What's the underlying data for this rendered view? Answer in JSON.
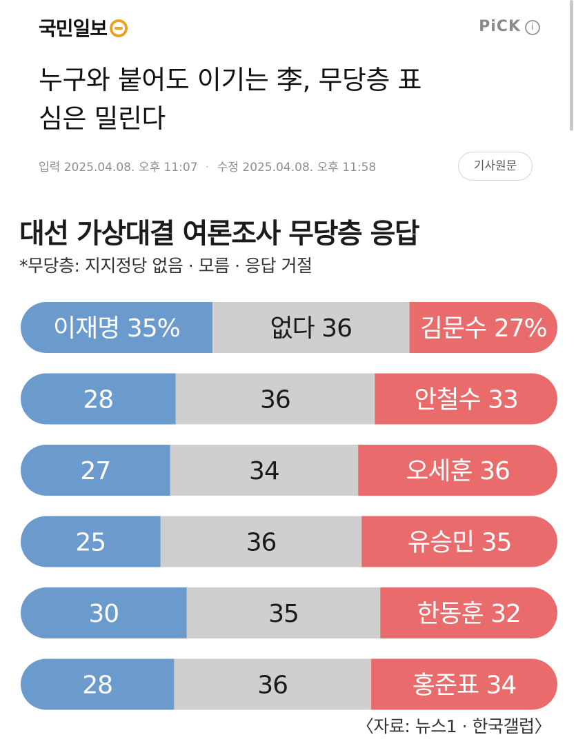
{
  "header": {
    "logo_text": "국민일보",
    "pick_label": "PiCK",
    "info_glyph": "i"
  },
  "article": {
    "headline_line1": "누구와 붙어도 이기는 李, 무당층 표",
    "headline_line2": "심은 밀린다",
    "input_label": "입력",
    "input_time": "2025.04.08. 오후 11:07",
    "edit_label": "수정",
    "edit_time": "2025.04.08. 오후 11:58",
    "original_button": "기사원문"
  },
  "chart_title": "대선 가상대결 여론조사 무당층 응답",
  "chart_note": "*무당층: 지지정당 없음 · 모름 · 응답 거절",
  "source": "〈자료: 뉴스1 · 한국갤럽〉",
  "colors": {
    "lee": "#6b9bcd",
    "none": "#cfcfcf",
    "opponent": "#ea6b6c"
  },
  "chart_data": {
    "type": "bar",
    "stacked": true,
    "orientation": "horizontal",
    "rows": [
      {
        "left_label": "이재명 35%",
        "middle_label": "없다 36",
        "right_label": "김문수 27%",
        "values": [
          35,
          36,
          27
        ]
      },
      {
        "left_label": "28",
        "middle_label": "36",
        "right_label": "안철수 33",
        "values": [
          28,
          36,
          33
        ]
      },
      {
        "left_label": "27",
        "middle_label": "34",
        "right_label": "오세훈 36",
        "values": [
          27,
          34,
          36
        ]
      },
      {
        "left_label": "25",
        "middle_label": "36",
        "right_label": "유승민 35",
        "values": [
          25,
          36,
          35
        ]
      },
      {
        "left_label": "30",
        "middle_label": "35",
        "right_label": "한동훈 32",
        "values": [
          30,
          35,
          32
        ]
      },
      {
        "left_label": "28",
        "middle_label": "36",
        "right_label": "홍준표 34",
        "values": [
          28,
          36,
          34
        ]
      }
    ]
  }
}
